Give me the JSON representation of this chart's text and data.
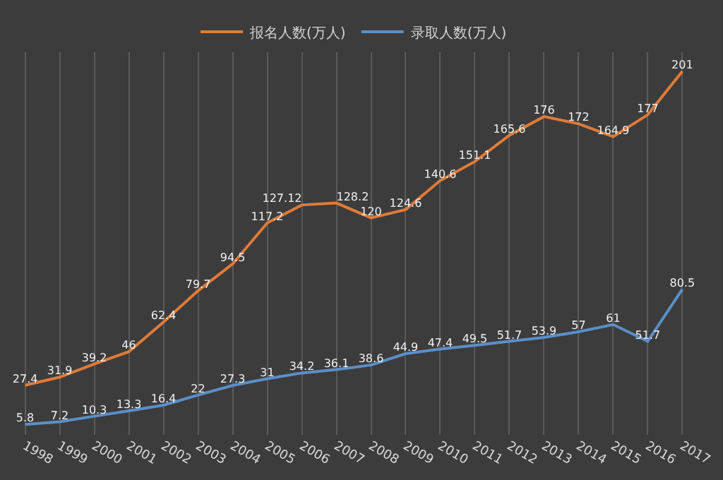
{
  "chart_data": {
    "type": "line",
    "categories": [
      "1998",
      "1999",
      "2000",
      "2001",
      "2002",
      "2003",
      "2004",
      "2005",
      "2006",
      "2007",
      "2008",
      "2009",
      "2010",
      "2011",
      "2012",
      "2013",
      "2014",
      "2015",
      "2016",
      "2017"
    ],
    "series": [
      {
        "name": "报名人数(万人)",
        "color": "#e07b39",
        "values": [
          27.4,
          31.9,
          39.2,
          46,
          62.4,
          79.7,
          94.5,
          117.2,
          127.12,
          128.2,
          120,
          124.6,
          140.6,
          151.1,
          165.6,
          176,
          172,
          164.9,
          177,
          201
        ]
      },
      {
        "name": "录取人数(万人)",
        "color": "#5b8fc7",
        "values": [
          5.8,
          7.2,
          10.3,
          13.3,
          16.4,
          22,
          27.3,
          31,
          34.2,
          36.1,
          38.6,
          44.9,
          47.4,
          49.5,
          51.7,
          53.9,
          57,
          61,
          51.7,
          80.5
        ]
      }
    ],
    "tick_labels": "x",
    "grid": "x",
    "legend": "top",
    "data_labels": true,
    "marker": "none",
    "line_style": "solid"
  }
}
